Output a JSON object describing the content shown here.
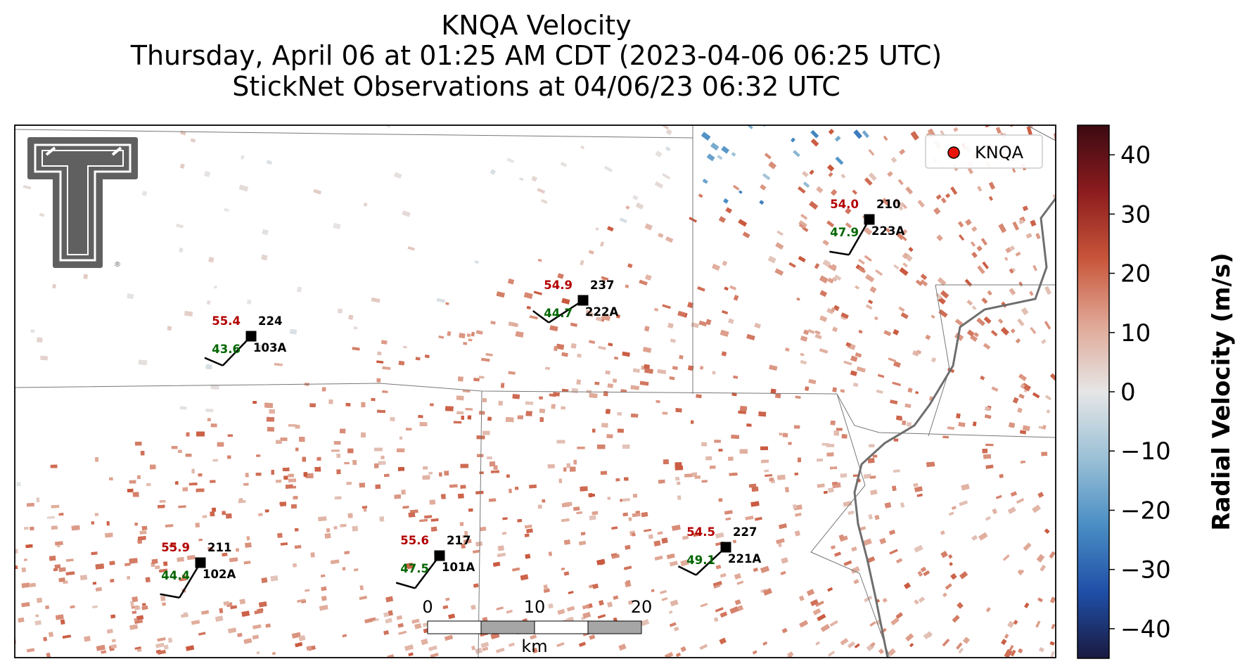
{
  "title": {
    "line1": "KNQA Velocity",
    "line2": "Thursday, April 06 at 01:25 AM CDT (2023-04-06 06:25 UTC)",
    "line3": "StickNet Observations at 04/06/23 06:32 UTC"
  },
  "logo": {
    "icon": "texas-tech-double-t-logo",
    "mark": "®"
  },
  "legend": {
    "label": "KNQA",
    "marker_color": "#e8140a"
  },
  "colorbar": {
    "label": "Radial Velocity (m/s)",
    "ticks": [
      "40",
      "30",
      "20",
      "10",
      "0",
      "−10",
      "−20",
      "−30",
      "−40"
    ],
    "tick_values": [
      40,
      30,
      20,
      10,
      0,
      -10,
      -20,
      -30,
      -40
    ],
    "range": [
      -45,
      45
    ],
    "colors": [
      "#1a1a40",
      "#1f4fa8",
      "#4a8ec4",
      "#9bc0d6",
      "#e6e6e6",
      "#e0a896",
      "#c8553a",
      "#8c1c1e",
      "#3c0a12"
    ]
  },
  "scalebar": {
    "labels": [
      "0",
      "10",
      "20"
    ],
    "unit": "km"
  },
  "stations": [
    {
      "id": "103A",
      "temp": "55.4",
      "dewpoint": "43.6",
      "direction": "224"
    },
    {
      "id": "222A",
      "temp": "54.9",
      "dewpoint": "44.7",
      "direction": "237"
    },
    {
      "id": "223A",
      "temp": "54.0",
      "dewpoint": "47.9",
      "direction": "210"
    },
    {
      "id": "102A",
      "temp": "55.9",
      "dewpoint": "44.4",
      "direction": "211"
    },
    {
      "id": "101A",
      "temp": "55.6",
      "dewpoint": "47.5",
      "direction": "217"
    },
    {
      "id": "221A",
      "temp": "54.5",
      "dewpoint": "49.1",
      "direction": "227"
    }
  ],
  "colors": {
    "temp": "#b30000",
    "dewpoint": "#006600",
    "station_marker": "#000000"
  }
}
